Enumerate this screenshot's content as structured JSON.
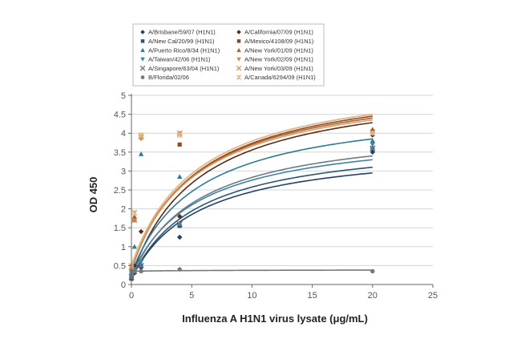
{
  "chart_data": {
    "type": "scatter",
    "title": "",
    "xlabel": "Influenza A H1N1 virus lysate (μg/mL)",
    "ylabel": "OD 450",
    "xlim": [
      0,
      25
    ],
    "ylim": [
      0,
      5
    ],
    "xticks": [
      0,
      5,
      10,
      15,
      20,
      25
    ],
    "yticks": [
      0,
      0.5,
      1,
      1.5,
      2,
      2.5,
      3,
      3.5,
      4,
      4.5,
      5
    ],
    "grid": "horizontal",
    "legend_position": "top",
    "x": [
      0,
      0.25,
      0.8,
      4,
      20
    ],
    "series": [
      {
        "name": "A/Brisbane/59/07 (H1N1)",
        "marker": "diamond",
        "color": "#1f3f66",
        "values": [
          0.15,
          0.3,
          0.45,
          1.25,
          3.5
        ],
        "curve": [
          0.15,
          2.95
        ]
      },
      {
        "name": "A/California/07/09 (H1N1)",
        "marker": "diamond",
        "color": "#5a2a14",
        "values": [
          0.2,
          0.5,
          1.4,
          1.8,
          3.95
        ],
        "curve": [
          0.2,
          4.28
        ]
      },
      {
        "name": "A/New Cal/20/99 (H1N1)",
        "marker": "square",
        "color": "#2a5577",
        "values": [
          0.15,
          0.35,
          0.5,
          1.55,
          3.6
        ],
        "curve": [
          0.15,
          3.1
        ]
      },
      {
        "name": "A/Mexico/4108/09 (H1N1)",
        "marker": "square",
        "color": "#8c4a24",
        "values": [
          0.4,
          1.7,
          3.9,
          3.7,
          4.05
        ],
        "curve": [
          0.4,
          4.45
        ]
      },
      {
        "name": "A/Puerto Rico/8/34 (H1N1)",
        "marker": "triangle-up",
        "color": "#2c7b96",
        "values": [
          0.3,
          1.0,
          3.45,
          2.85,
          3.8
        ],
        "curve": [
          0.3,
          3.85
        ]
      },
      {
        "name": "A/New York/01/09 (H1N1)",
        "marker": "triangle-up",
        "color": "#b2602a",
        "values": [
          0.45,
          1.8,
          3.95,
          4.0,
          4.1
        ],
        "curve": [
          0.45,
          4.4
        ]
      },
      {
        "name": "A/Taiwan/42/06 (H1N1)",
        "marker": "triangle-down",
        "color": "#3a86a8",
        "values": [
          0.25,
          0.4,
          0.6,
          1.6,
          3.7
        ],
        "curve": [
          0.25,
          3.3
        ]
      },
      {
        "name": "A/New York/02/09 (H1N1)",
        "marker": "triangle-down",
        "color": "#cf8a4c",
        "values": [
          0.5,
          1.9,
          3.85,
          3.95,
          4.0
        ],
        "curve": [
          0.5,
          4.5
        ]
      },
      {
        "name": "A/Singapore/63/04 (H1N1)",
        "marker": "x",
        "color": "#6e7a86",
        "values": [
          0.2,
          0.35,
          0.5,
          1.6,
          3.6
        ],
        "curve": [
          0.2,
          3.4
        ]
      },
      {
        "name": "A/New York/03/09 (H1N1)",
        "marker": "x",
        "color": "#d99a5e",
        "values": [
          0.45,
          1.7,
          3.9,
          4.0,
          4.0
        ],
        "curve": [
          0.45,
          4.35
        ]
      },
      {
        "name": "B/Florida/02/06",
        "marker": "circle",
        "color": "#777777",
        "values": [
          0.35,
          0.35,
          0.35,
          0.4,
          0.35
        ],
        "curve": [
          0.35,
          0.38
        ]
      },
      {
        "name": "A/Canada/6294/09 (H1N1)",
        "marker": "asterisk",
        "color": "#e2b98e",
        "values": [
          0.5,
          1.9,
          3.95,
          3.95,
          4.0
        ],
        "curve": [
          0.5,
          4.5
        ]
      }
    ]
  }
}
